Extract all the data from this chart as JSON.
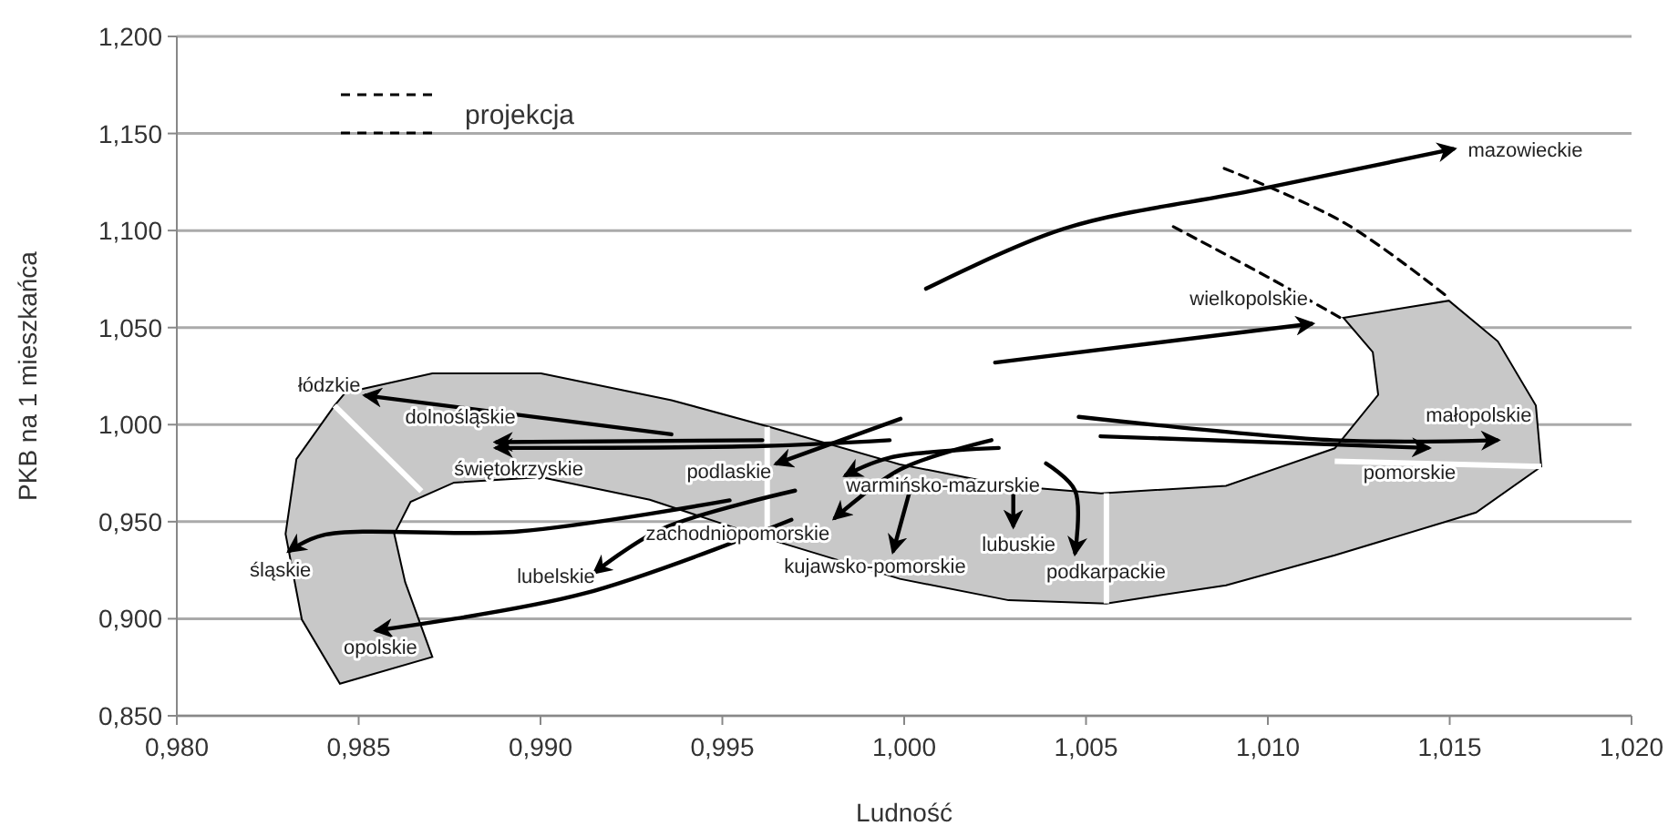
{
  "chart_data": {
    "type": "line",
    "xlabel": "Ludność",
    "ylabel": "PKB na 1 mieszkańca",
    "xlim": [
      0.98,
      1.02
    ],
    "ylim": [
      0.85,
      1.2
    ],
    "xticks": [
      {
        "value": 0.98,
        "label": "0,980"
      },
      {
        "value": 0.985,
        "label": "0,985"
      },
      {
        "value": 0.99,
        "label": "0,990"
      },
      {
        "value": 0.995,
        "label": "0,995"
      },
      {
        "value": 1.0,
        "label": "1,000"
      },
      {
        "value": 1.005,
        "label": "1,005"
      },
      {
        "value": 1.01,
        "label": "1,010"
      },
      {
        "value": 1.015,
        "label": "1,015"
      },
      {
        "value": 1.02,
        "label": "1,020"
      }
    ],
    "yticks": [
      {
        "value": 0.85,
        "label": "0,850"
      },
      {
        "value": 0.9,
        "label": "0,900"
      },
      {
        "value": 0.95,
        "label": "0,950"
      },
      {
        "value": 1.0,
        "label": "1,000"
      },
      {
        "value": 1.05,
        "label": "1,050"
      },
      {
        "value": 1.1,
        "label": "1,100"
      },
      {
        "value": 1.15,
        "label": "1,150"
      },
      {
        "value": 1.2,
        "label": "1,200"
      }
    ],
    "grid": "y",
    "legend": "top left",
    "marker": "none",
    "series": [
      {
        "name": "mazowieckie",
        "color": "#000000",
        "x": [
          1.0006,
          1.0044,
          1.0097,
          1.0151
        ],
        "values": [
          1.07,
          1.101,
          1.121,
          1.142
        ]
      },
      {
        "name": "wielkopolskie",
        "color": "#000000",
        "x": [
          1.0025,
          1.0112
        ],
        "values": [
          1.032,
          1.052
        ]
      },
      {
        "name": "małopolskie",
        "color": "#000000",
        "x": [
          1.0048,
          1.0118,
          1.0163
        ],
        "values": [
          1.004,
          0.992,
          0.992
        ]
      },
      {
        "name": "pomorskie",
        "color": "#000000",
        "x": [
          1.0054,
          1.0144
        ],
        "values": [
          0.994,
          0.988
        ]
      },
      {
        "name": "łódzkie",
        "color": "#000000",
        "x": [
          0.9936,
          0.9852
        ],
        "values": [
          0.995,
          1.015
        ]
      },
      {
        "name": "dolnośląskie",
        "color": "#000000",
        "x": [
          0.9961,
          0.9888
        ],
        "values": [
          0.992,
          0.991
        ]
      },
      {
        "name": "świętokrzyskie",
        "color": "#000000",
        "x": [
          0.9996,
          0.9961,
          0.9888
        ],
        "values": [
          0.992,
          0.989,
          0.988
        ]
      },
      {
        "name": "podlaskie",
        "color": "#000000",
        "x": [
          0.9999,
          0.9965
        ],
        "values": [
          1.003,
          0.98
        ]
      },
      {
        "name": "warmińsko-mazurskie",
        "color": "#000000",
        "x": [
          1.0026,
          0.9996,
          0.9984
        ],
        "values": [
          0.988,
          0.983,
          0.974
        ]
      },
      {
        "name": "zachodniopomorskie",
        "color": "#000000",
        "x": [
          1.0024,
          0.9999,
          0.9981
        ],
        "values": [
          0.992,
          0.977,
          0.952
        ]
      },
      {
        "name": "kujawsko-pomorskie",
        "color": "#000000",
        "x": [
          1.0002,
          0.9997
        ],
        "values": [
          0.969,
          0.935
        ]
      },
      {
        "name": "lubuskie",
        "color": "#000000",
        "x": [
          1.003,
          1.003
        ],
        "values": [
          0.971,
          0.948
        ]
      },
      {
        "name": "podkarpackie",
        "color": "#000000",
        "x": [
          1.0039,
          1.0047,
          1.0047
        ],
        "values": [
          0.98,
          0.966,
          0.934
        ]
      },
      {
        "name": "śląskie",
        "color": "#000000",
        "x": [
          0.9952,
          0.9894,
          0.984,
          0.9831
        ],
        "values": [
          0.961,
          0.945,
          0.943,
          0.935
        ]
      },
      {
        "name": "lubelskie",
        "color": "#000000",
        "x": [
          0.997,
          0.9933,
          0.9915
        ],
        "values": [
          0.966,
          0.946,
          0.924
        ]
      },
      {
        "name": "opolskie",
        "color": "#000000",
        "x": [
          0.9969,
          0.9912,
          0.9855
        ],
        "values": [
          0.951,
          0.913,
          0.894
        ]
      },
      {
        "name": "projekcja",
        "color": "#000000",
        "line_style": "dashed",
        "x": [
          1.0088,
          1.0121,
          1.015
        ],
        "values": [
          1.132,
          1.104,
          1.065
        ]
      },
      {
        "color": "#000000",
        "line_style": "dashed",
        "x": [
          1.0074,
          1.01,
          1.012
        ],
        "values": [
          1.102,
          1.076,
          1.055
        ]
      }
    ]
  }
}
